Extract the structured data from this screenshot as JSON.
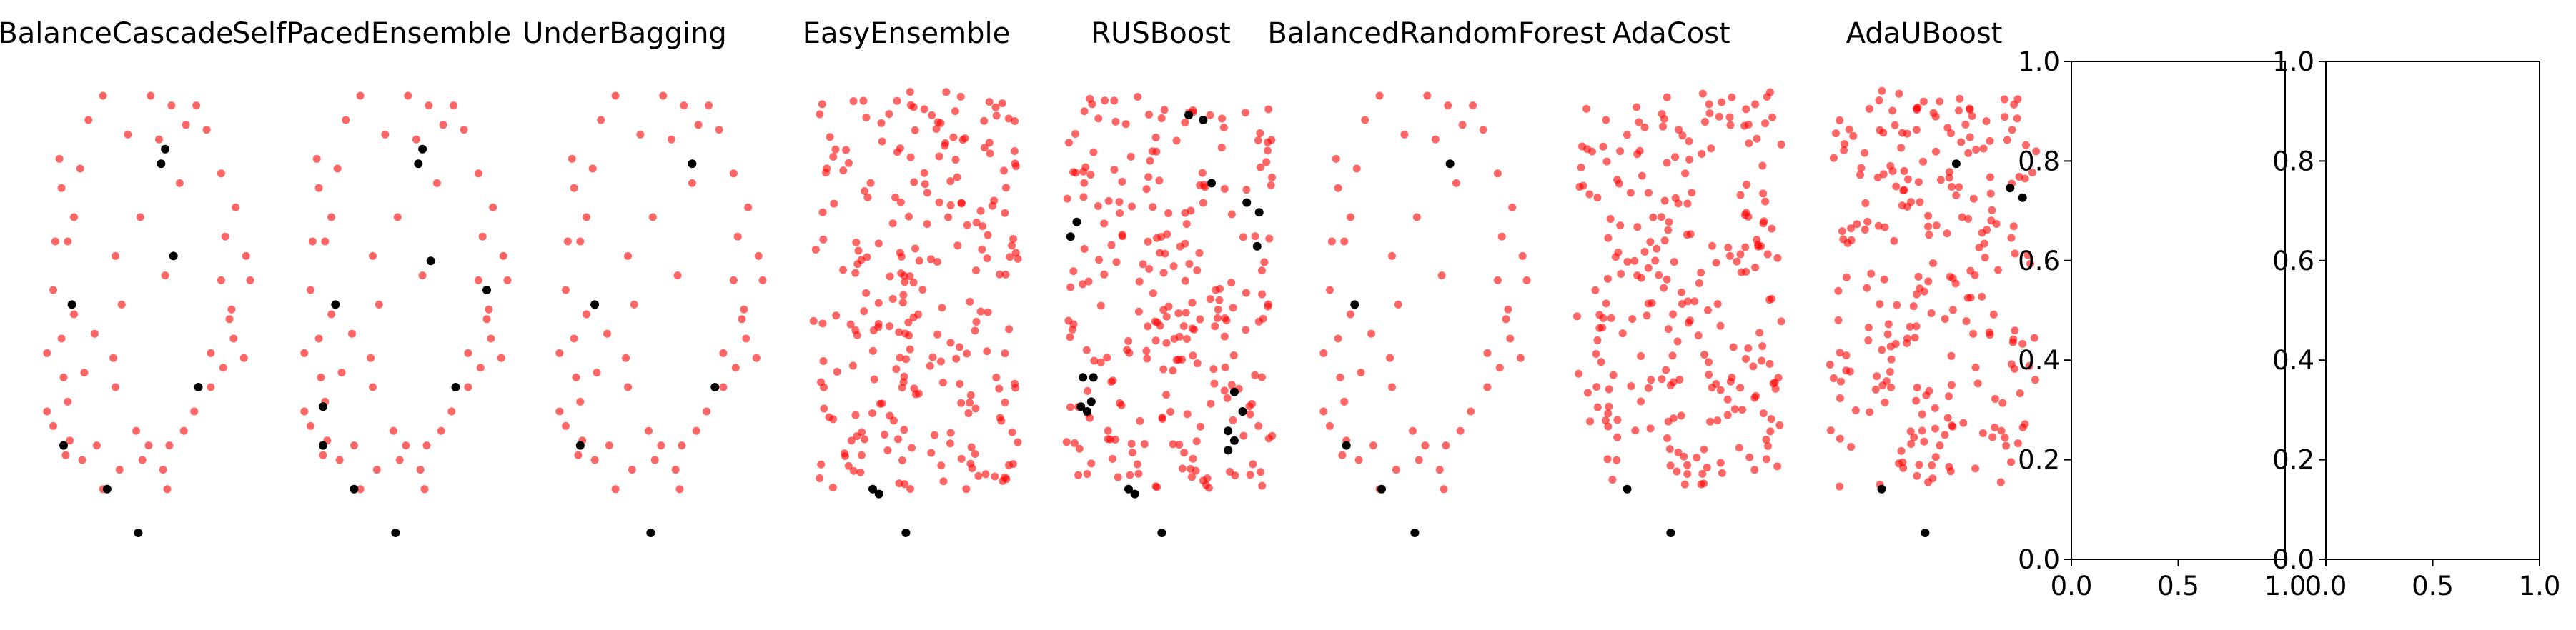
{
  "chart_data": {
    "type": "scatter",
    "panels": [
      {
        "title": "BalanceCascade",
        "red": [
          [
            0.29,
            0.95
          ],
          [
            0.52,
            0.95
          ],
          [
            0.62,
            0.93
          ],
          [
            0.74,
            0.93
          ],
          [
            0.22,
            0.9
          ],
          [
            0.41,
            0.87
          ],
          [
            0.79,
            0.88
          ],
          [
            0.56,
            0.86
          ],
          [
            0.69,
            0.89
          ],
          [
            0.08,
            0.82
          ],
          [
            0.18,
            0.8
          ],
          [
            0.86,
            0.79
          ],
          [
            0.66,
            0.77
          ],
          [
            0.09,
            0.76
          ],
          [
            0.93,
            0.72
          ],
          [
            0.15,
            0.7
          ],
          [
            0.47,
            0.7
          ],
          [
            0.88,
            0.66
          ],
          [
            0.98,
            0.62
          ],
          [
            0.12,
            0.65
          ],
          [
            0.35,
            0.62
          ],
          [
            0.86,
            0.57
          ],
          [
            1.0,
            0.57
          ],
          [
            0.05,
            0.55
          ],
          [
            0.38,
            0.52
          ],
          [
            0.91,
            0.51
          ],
          [
            0.15,
            0.5
          ],
          [
            0.25,
            0.46
          ],
          [
            0.92,
            0.45
          ],
          [
            0.09,
            0.45
          ],
          [
            0.34,
            0.41
          ],
          [
            0.81,
            0.42
          ],
          [
            0.02,
            0.42
          ],
          [
            0.97,
            0.41
          ],
          [
            0.87,
            0.39
          ],
          [
            0.1,
            0.37
          ],
          [
            0.35,
            0.35
          ],
          [
            0.73,
            0.3
          ],
          [
            0.12,
            0.32
          ],
          [
            0.02,
            0.3
          ],
          [
            0.05,
            0.27
          ],
          [
            0.45,
            0.26
          ],
          [
            0.68,
            0.26
          ],
          [
            0.51,
            0.23
          ],
          [
            0.61,
            0.23
          ],
          [
            0.13,
            0.24
          ],
          [
            0.26,
            0.23
          ],
          [
            0.11,
            0.21
          ],
          [
            0.19,
            0.2
          ],
          [
            0.37,
            0.18
          ],
          [
            0.58,
            0.18
          ],
          [
            0.6,
            0.14
          ],
          [
            0.29,
            0.14
          ],
          [
            0.48,
            0.2
          ],
          [
            0.81,
            0.35
          ],
          [
            0.9,
            0.49
          ],
          [
            0.59,
            0.58
          ],
          [
            0.06,
            0.65
          ],
          [
            0.2,
            0.38
          ]
        ],
        "black": [
          [
            0.59,
            0.84
          ],
          [
            0.57,
            0.81
          ],
          [
            0.63,
            0.62
          ],
          [
            0.14,
            0.52
          ],
          [
            0.75,
            0.35
          ],
          [
            0.1,
            0.23
          ],
          [
            0.31,
            0.14
          ],
          [
            0.46,
            0.05
          ]
        ]
      },
      {
        "title": "SelfPacedEnsemble",
        "red": [
          [
            0.29,
            0.95
          ],
          [
            0.52,
            0.95
          ],
          [
            0.62,
            0.93
          ],
          [
            0.74,
            0.93
          ],
          [
            0.22,
            0.9
          ],
          [
            0.41,
            0.87
          ],
          [
            0.79,
            0.88
          ],
          [
            0.56,
            0.86
          ],
          [
            0.69,
            0.89
          ],
          [
            0.08,
            0.82
          ],
          [
            0.18,
            0.8
          ],
          [
            0.86,
            0.79
          ],
          [
            0.66,
            0.77
          ],
          [
            0.09,
            0.76
          ],
          [
            0.93,
            0.72
          ],
          [
            0.15,
            0.7
          ],
          [
            0.47,
            0.7
          ],
          [
            0.88,
            0.66
          ],
          [
            0.98,
            0.62
          ],
          [
            0.12,
            0.65
          ],
          [
            0.35,
            0.62
          ],
          [
            0.86,
            0.57
          ],
          [
            1.0,
            0.57
          ],
          [
            0.05,
            0.55
          ],
          [
            0.38,
            0.52
          ],
          [
            0.91,
            0.51
          ],
          [
            0.15,
            0.5
          ],
          [
            0.25,
            0.46
          ],
          [
            0.92,
            0.45
          ],
          [
            0.09,
            0.45
          ],
          [
            0.34,
            0.41
          ],
          [
            0.81,
            0.42
          ],
          [
            0.02,
            0.42
          ],
          [
            0.97,
            0.41
          ],
          [
            0.87,
            0.39
          ],
          [
            0.1,
            0.37
          ],
          [
            0.35,
            0.35
          ],
          [
            0.73,
            0.3
          ],
          [
            0.12,
            0.32
          ],
          [
            0.02,
            0.3
          ],
          [
            0.05,
            0.27
          ],
          [
            0.45,
            0.26
          ],
          [
            0.68,
            0.26
          ],
          [
            0.51,
            0.23
          ],
          [
            0.61,
            0.23
          ],
          [
            0.13,
            0.24
          ],
          [
            0.26,
            0.23
          ],
          [
            0.11,
            0.21
          ],
          [
            0.19,
            0.2
          ],
          [
            0.37,
            0.18
          ],
          [
            0.58,
            0.18
          ],
          [
            0.6,
            0.14
          ],
          [
            0.29,
            0.14
          ],
          [
            0.48,
            0.2
          ],
          [
            0.81,
            0.35
          ],
          [
            0.9,
            0.49
          ],
          [
            0.59,
            0.58
          ],
          [
            0.06,
            0.65
          ],
          [
            0.2,
            0.38
          ]
        ],
        "black": [
          [
            0.59,
            0.84
          ],
          [
            0.57,
            0.81
          ],
          [
            0.63,
            0.61
          ],
          [
            0.17,
            0.52
          ],
          [
            0.9,
            0.55
          ],
          [
            0.75,
            0.35
          ],
          [
            0.11,
            0.31
          ],
          [
            0.11,
            0.23
          ],
          [
            0.26,
            0.14
          ],
          [
            0.46,
            0.05
          ]
        ]
      },
      {
        "title": "UnderBagging",
        "red": [
          [
            0.29,
            0.95
          ],
          [
            0.52,
            0.95
          ],
          [
            0.62,
            0.93
          ],
          [
            0.74,
            0.93
          ],
          [
            0.22,
            0.9
          ],
          [
            0.41,
            0.87
          ],
          [
            0.79,
            0.88
          ],
          [
            0.56,
            0.86
          ],
          [
            0.69,
            0.89
          ],
          [
            0.08,
            0.82
          ],
          [
            0.18,
            0.8
          ],
          [
            0.86,
            0.79
          ],
          [
            0.66,
            0.77
          ],
          [
            0.09,
            0.76
          ],
          [
            0.93,
            0.72
          ],
          [
            0.15,
            0.7
          ],
          [
            0.47,
            0.7
          ],
          [
            0.88,
            0.66
          ],
          [
            0.98,
            0.62
          ],
          [
            0.12,
            0.65
          ],
          [
            0.35,
            0.62
          ],
          [
            0.86,
            0.57
          ],
          [
            1.0,
            0.57
          ],
          [
            0.05,
            0.55
          ],
          [
            0.38,
            0.52
          ],
          [
            0.91,
            0.51
          ],
          [
            0.15,
            0.5
          ],
          [
            0.25,
            0.46
          ],
          [
            0.92,
            0.45
          ],
          [
            0.09,
            0.45
          ],
          [
            0.34,
            0.41
          ],
          [
            0.81,
            0.42
          ],
          [
            0.02,
            0.42
          ],
          [
            0.97,
            0.41
          ],
          [
            0.87,
            0.39
          ],
          [
            0.1,
            0.37
          ],
          [
            0.35,
            0.35
          ],
          [
            0.73,
            0.3
          ],
          [
            0.12,
            0.32
          ],
          [
            0.02,
            0.3
          ],
          [
            0.05,
            0.27
          ],
          [
            0.45,
            0.26
          ],
          [
            0.68,
            0.26
          ],
          [
            0.51,
            0.23
          ],
          [
            0.61,
            0.23
          ],
          [
            0.13,
            0.24
          ],
          [
            0.26,
            0.23
          ],
          [
            0.11,
            0.21
          ],
          [
            0.19,
            0.2
          ],
          [
            0.37,
            0.18
          ],
          [
            0.58,
            0.18
          ],
          [
            0.6,
            0.14
          ],
          [
            0.29,
            0.14
          ],
          [
            0.48,
            0.2
          ],
          [
            0.81,
            0.35
          ],
          [
            0.9,
            0.49
          ],
          [
            0.59,
            0.58
          ],
          [
            0.06,
            0.65
          ],
          [
            0.2,
            0.38
          ]
        ],
        "black": [
          [
            0.66,
            0.81
          ],
          [
            0.19,
            0.52
          ],
          [
            0.77,
            0.35
          ],
          [
            0.12,
            0.23
          ],
          [
            0.46,
            0.05
          ]
        ]
      },
      {
        "title": "EasyEnsemble",
        "dense": true,
        "black": [
          [
            0.3,
            0.14
          ],
          [
            0.33,
            0.13
          ],
          [
            0.46,
            0.05
          ]
        ]
      },
      {
        "title": "RUSBoost",
        "dense": true,
        "black": [
          [
            0.59,
            0.91
          ],
          [
            0.66,
            0.9
          ],
          [
            0.7,
            0.77
          ],
          [
            0.87,
            0.73
          ],
          [
            0.93,
            0.71
          ],
          [
            0.05,
            0.69
          ],
          [
            0.02,
            0.66
          ],
          [
            0.92,
            0.64
          ],
          [
            0.08,
            0.37
          ],
          [
            0.13,
            0.37
          ],
          [
            0.81,
            0.34
          ],
          [
            0.12,
            0.32
          ],
          [
            0.07,
            0.31
          ],
          [
            0.1,
            0.3
          ],
          [
            0.85,
            0.3
          ],
          [
            0.78,
            0.26
          ],
          [
            0.81,
            0.24
          ],
          [
            0.78,
            0.22
          ],
          [
            0.3,
            0.14
          ],
          [
            0.33,
            0.13
          ],
          [
            0.46,
            0.05
          ]
        ]
      },
      {
        "title": "BalancedRandomForest",
        "red": [
          [
            0.29,
            0.95
          ],
          [
            0.52,
            0.95
          ],
          [
            0.62,
            0.93
          ],
          [
            0.74,
            0.93
          ],
          [
            0.22,
            0.9
          ],
          [
            0.41,
            0.87
          ],
          [
            0.79,
            0.88
          ],
          [
            0.56,
            0.86
          ],
          [
            0.69,
            0.89
          ],
          [
            0.08,
            0.82
          ],
          [
            0.18,
            0.8
          ],
          [
            0.86,
            0.79
          ],
          [
            0.66,
            0.77
          ],
          [
            0.09,
            0.76
          ],
          [
            0.93,
            0.72
          ],
          [
            0.15,
            0.7
          ],
          [
            0.47,
            0.7
          ],
          [
            0.88,
            0.66
          ],
          [
            0.98,
            0.62
          ],
          [
            0.12,
            0.65
          ],
          [
            0.35,
            0.62
          ],
          [
            0.86,
            0.57
          ],
          [
            1.0,
            0.57
          ],
          [
            0.05,
            0.55
          ],
          [
            0.38,
            0.52
          ],
          [
            0.91,
            0.51
          ],
          [
            0.15,
            0.5
          ],
          [
            0.25,
            0.46
          ],
          [
            0.92,
            0.45
          ],
          [
            0.09,
            0.45
          ],
          [
            0.34,
            0.41
          ],
          [
            0.81,
            0.42
          ],
          [
            0.02,
            0.42
          ],
          [
            0.97,
            0.41
          ],
          [
            0.87,
            0.39
          ],
          [
            0.1,
            0.37
          ],
          [
            0.35,
            0.35
          ],
          [
            0.73,
            0.3
          ],
          [
            0.12,
            0.32
          ],
          [
            0.02,
            0.3
          ],
          [
            0.05,
            0.27
          ],
          [
            0.45,
            0.26
          ],
          [
            0.68,
            0.26
          ],
          [
            0.51,
            0.23
          ],
          [
            0.61,
            0.23
          ],
          [
            0.13,
            0.24
          ],
          [
            0.26,
            0.23
          ],
          [
            0.11,
            0.21
          ],
          [
            0.19,
            0.2
          ],
          [
            0.37,
            0.18
          ],
          [
            0.58,
            0.18
          ],
          [
            0.6,
            0.14
          ],
          [
            0.29,
            0.14
          ],
          [
            0.48,
            0.2
          ],
          [
            0.81,
            0.35
          ],
          [
            0.9,
            0.49
          ],
          [
            0.59,
            0.58
          ],
          [
            0.06,
            0.65
          ],
          [
            0.2,
            0.38
          ]
        ],
        "black": [
          [
            0.63,
            0.81
          ],
          [
            0.17,
            0.52
          ],
          [
            0.13,
            0.23
          ],
          [
            0.3,
            0.14
          ],
          [
            0.46,
            0.05
          ]
        ]
      },
      {
        "title": "AdaCost",
        "dense": true,
        "black": [
          [
            0.25,
            0.14
          ],
          [
            0.46,
            0.05
          ]
        ]
      },
      {
        "title": "AdaUBoost",
        "dense": true,
        "black": [
          [
            0.61,
            0.81
          ],
          [
            0.87,
            0.76
          ],
          [
            0.93,
            0.74
          ],
          [
            0.25,
            0.14
          ],
          [
            0.46,
            0.05
          ]
        ]
      }
    ],
    "empty_axes": [
      {
        "xlim": [
          0.0,
          1.0
        ],
        "ylim": [
          0.0,
          1.0
        ],
        "xticks": [
          "0.0",
          "0.5",
          "1.0"
        ],
        "yticks": [
          "0.0",
          "0.2",
          "0.4",
          "0.6",
          "0.8",
          "1.0"
        ]
      },
      {
        "xlim": [
          0.0,
          1.0
        ],
        "ylim": [
          0.0,
          1.0
        ],
        "xticks": [
          "0.0",
          "0.5",
          "1.0"
        ],
        "yticks": [
          "0.0",
          "0.2",
          "0.4",
          "0.6",
          "0.8",
          "1.0"
        ]
      }
    ],
    "colors": {
      "majority": "#ff0000",
      "minority": "#000000"
    }
  }
}
